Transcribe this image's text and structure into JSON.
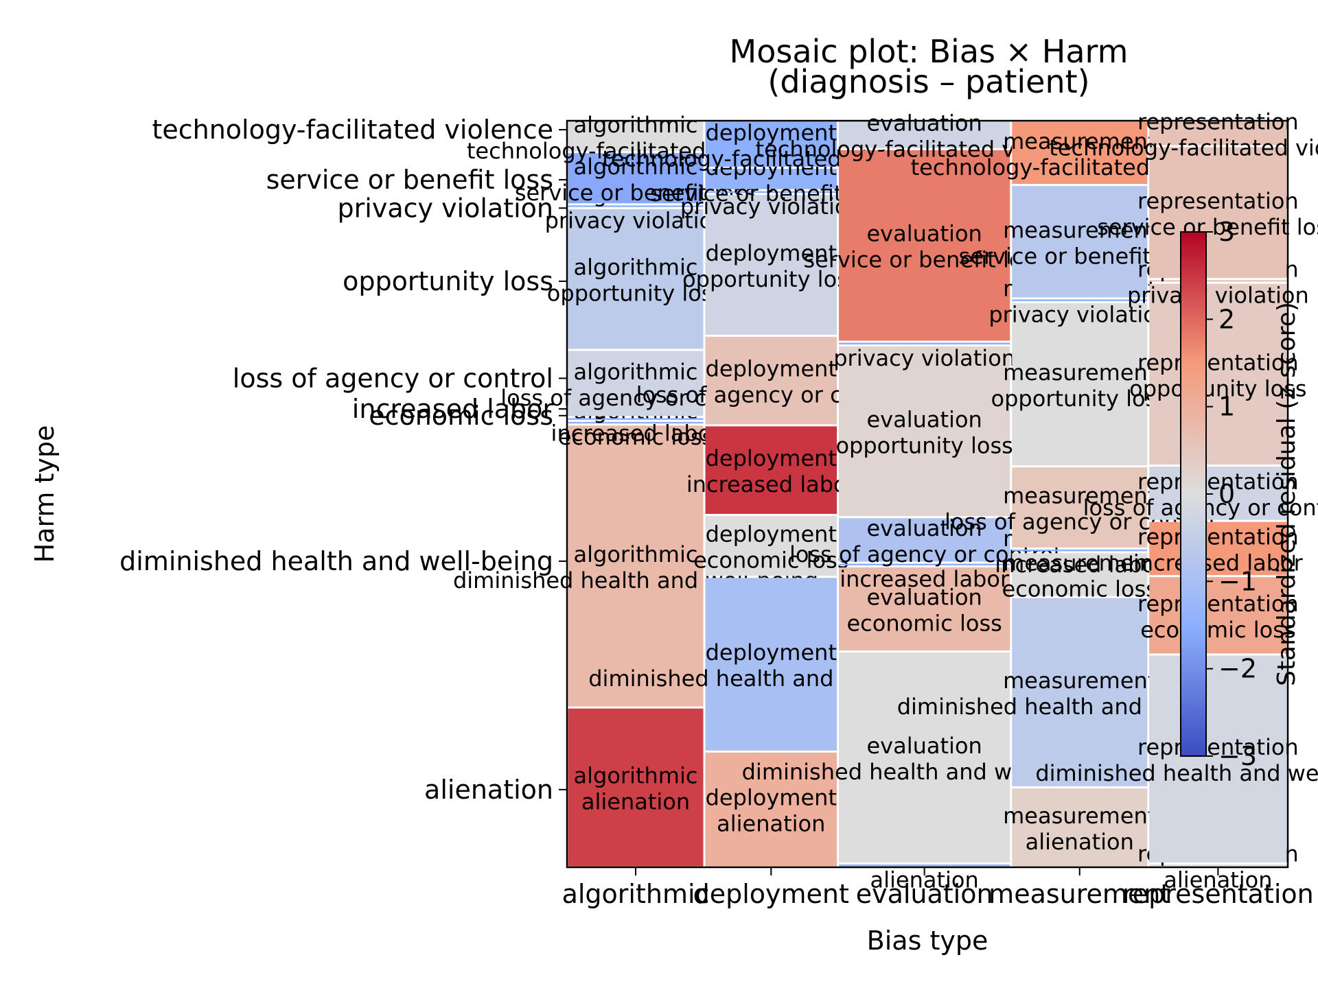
{
  "chart_data": {
    "type": "mosaic",
    "title": [
      "Mosaic plot: Bias × Harm",
      "(diagnosis – patient)"
    ],
    "xlabel": "Bias type",
    "ylabel": "Harm type",
    "bias_types": [
      "algorithmic",
      "deployment",
      "evaluation",
      "measurement",
      "representation"
    ],
    "harm_types": [
      "alienation",
      "diminished health and well-being",
      "economic loss",
      "increased labor",
      "loss of agency or control",
      "opportunity loss",
      "privacy violation",
      "service or benefit loss",
      "technology-facilitated violence"
    ],
    "y_tick_labels": [
      {
        "label": "technology-facilitated violence",
        "y": 0.988
      },
      {
        "label": "service or benefit loss",
        "y": 0.921
      },
      {
        "label": "privacy violation",
        "y": 0.883
      },
      {
        "label": "opportunity loss",
        "y": 0.785
      },
      {
        "label": "loss of agency or control",
        "y": 0.655
      },
      {
        "label": "increased labor",
        "y": 0.614
      },
      {
        "label": "economic loss",
        "y": 0.605
      },
      {
        "label": "diminished health and well-being",
        "y": 0.41
      },
      {
        "label": "alienation",
        "y": 0.104
      }
    ],
    "columns": [
      {
        "bias": "algorithmic",
        "width": 0.184,
        "cells": [
          {
            "harm": "alienation",
            "share": 0.214,
            "residual": 2.4
          },
          {
            "harm": "diminished health and well-being",
            "share": 0.379,
            "residual": 0.8
          },
          {
            "harm": "economic loss",
            "share": 0.005,
            "residual": -1.5
          },
          {
            "harm": "increased labor",
            "share": 0.005,
            "residual": -1.5
          },
          {
            "harm": "loss of agency or control",
            "share": 0.09,
            "residual": -0.3
          },
          {
            "harm": "opportunity loss",
            "share": 0.19,
            "residual": -0.6
          },
          {
            "harm": "privacy violation",
            "share": 0.005,
            "residual": -1.5
          },
          {
            "harm": "service or benefit loss",
            "share": 0.07,
            "residual": -1.6
          },
          {
            "harm": "technology-facilitated violence",
            "share": 0.042,
            "residual": 0.0
          }
        ]
      },
      {
        "bias": "deployment",
        "width": 0.179,
        "cells": [
          {
            "harm": "alienation",
            "share": 0.155,
            "residual": 1.0
          },
          {
            "harm": "diminished health and well-being",
            "share": 0.234,
            "residual": -1.0
          },
          {
            "harm": "economic loss",
            "share": 0.083,
            "residual": 0.0
          },
          {
            "harm": "increased labor",
            "share": 0.12,
            "residual": 2.5
          },
          {
            "harm": "loss of agency or control",
            "share": 0.12,
            "residual": 0.6
          },
          {
            "harm": "opportunity loss",
            "share": 0.19,
            "residual": -0.3
          },
          {
            "harm": "privacy violation",
            "share": 0.005,
            "residual": -1.5
          },
          {
            "harm": "service or benefit loss",
            "share": 0.03,
            "residual": -1.4
          },
          {
            "harm": "technology-facilitated violence",
            "share": 0.063,
            "residual": -1.5
          }
        ]
      },
      {
        "bias": "evaluation",
        "width": 0.232,
        "cells": [
          {
            "harm": "alienation",
            "share": 0.005,
            "residual": -1.5
          },
          {
            "harm": "diminished health and well-being",
            "share": 0.284,
            "residual": 0.0
          },
          {
            "harm": "economic loss",
            "share": 0.114,
            "residual": 0.8
          },
          {
            "harm": "increased labor",
            "share": 0.005,
            "residual": -1.5
          },
          {
            "harm": "loss of agency or control",
            "share": 0.061,
            "residual": -0.9
          },
          {
            "harm": "opportunity loss",
            "share": 0.23,
            "residual": 0.2
          },
          {
            "harm": "privacy violation",
            "share": 0.005,
            "residual": -1.5
          },
          {
            "harm": "service or benefit loss",
            "share": 0.258,
            "residual": 1.8
          },
          {
            "harm": "technology-facilitated violence",
            "share": 0.038,
            "residual": -0.3
          }
        ]
      },
      {
        "bias": "measurement",
        "width": 0.184,
        "cells": [
          {
            "harm": "alienation",
            "share": 0.107,
            "residual": 0.3
          },
          {
            "harm": "diminished health and well-being",
            "share": 0.255,
            "residual": -0.6
          },
          {
            "harm": "economic loss",
            "share": 0.06,
            "residual": 0.0
          },
          {
            "harm": "increased labor",
            "share": 0.005,
            "residual": -1.5
          },
          {
            "harm": "loss of agency or control",
            "share": 0.11,
            "residual": 0.5
          },
          {
            "harm": "opportunity loss",
            "share": 0.22,
            "residual": 0.0
          },
          {
            "harm": "privacy violation",
            "share": 0.005,
            "residual": -1.5
          },
          {
            "harm": "service or benefit loss",
            "share": 0.152,
            "residual": -0.7
          },
          {
            "harm": "technology-facilitated violence",
            "share": 0.086,
            "residual": 1.5
          }
        ]
      },
      {
        "bias": "representation",
        "width": 0.187,
        "cells": [
          {
            "harm": "alienation",
            "share": 0.005,
            "residual": 0.0
          },
          {
            "harm": "diminished health and well-being",
            "share": 0.28,
            "residual": -0.2
          },
          {
            "harm": "economic loss",
            "share": 0.105,
            "residual": 1.2
          },
          {
            "harm": "increased labor",
            "share": 0.074,
            "residual": 1.5
          },
          {
            "harm": "loss of agency or control",
            "share": 0.074,
            "residual": -0.3
          },
          {
            "harm": "opportunity loss",
            "share": 0.245,
            "residual": 0.4
          },
          {
            "harm": "privacy violation",
            "share": 0.005,
            "residual": 0.5
          },
          {
            "harm": "service or benefit loss",
            "share": 0.178,
            "residual": 0.6
          },
          {
            "harm": "technology-facilitated violence",
            "share": 0.034,
            "residual": 0.6
          }
        ]
      }
    ],
    "colorbar": {
      "label": "Standardized residual (z-score)",
      "range": [
        -3,
        3
      ],
      "ticks": [
        "−3",
        "−2",
        "−1",
        "0",
        "1",
        "2",
        "3"
      ],
      "colormap": "coolwarm",
      "low_color": "#3b4cc0",
      "mid_color": "#dddddd",
      "high_color": "#b40426"
    }
  }
}
